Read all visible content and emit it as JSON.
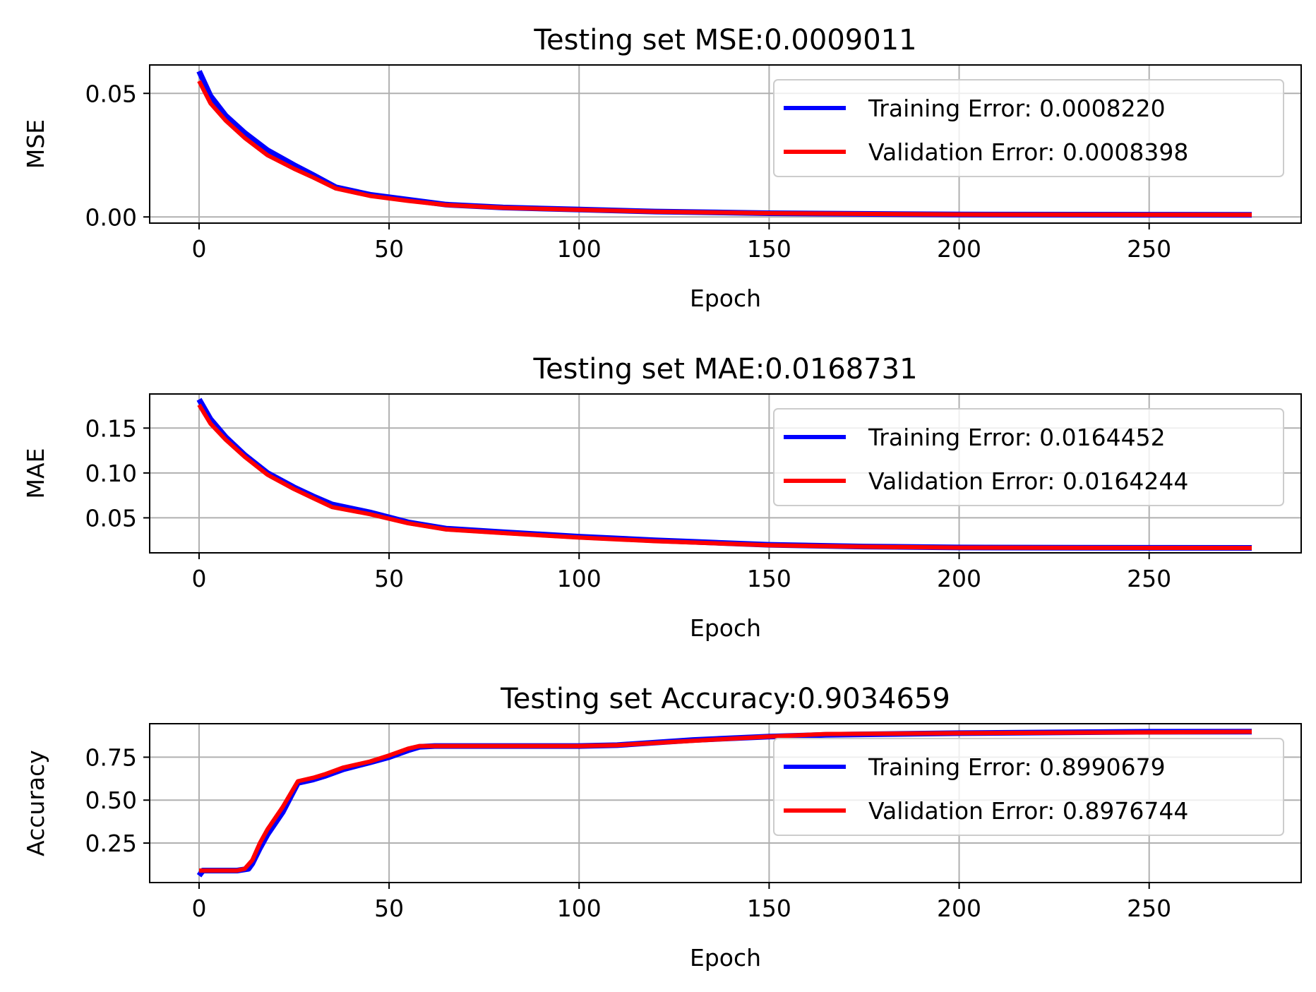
{
  "colors": {
    "training": "#0000ff",
    "validation": "#ff0000",
    "grid": "#b0b0b0",
    "axes": "#000000"
  },
  "chart_data": [
    {
      "type": "line",
      "title": "Testing set MSE:0.0009011",
      "xlabel": "Epoch",
      "ylabel": "MSE",
      "xlim": [
        -13,
        290
      ],
      "ylim": [
        -0.0025,
        0.0615
      ],
      "xticks": [
        0,
        50,
        100,
        150,
        200,
        250
      ],
      "xtick_labels": [
        "0",
        "50",
        "100",
        "150",
        "200",
        "250"
      ],
      "yticks": [
        0.0,
        0.05
      ],
      "ytick_labels": [
        "0.00",
        "0.05"
      ],
      "grid": true,
      "legend_position": "top-right",
      "series": [
        {
          "name": "Training Error: 0.0008220",
          "color": "#0000ff",
          "x": [
            0,
            3,
            7,
            12,
            18,
            25,
            30,
            36,
            45,
            55,
            65,
            80,
            100,
            120,
            150,
            200,
            250,
            277
          ],
          "y": [
            0.059,
            0.049,
            0.041,
            0.034,
            0.027,
            0.021,
            0.017,
            0.012,
            0.009,
            0.007,
            0.005,
            0.0038,
            0.003,
            0.0022,
            0.0015,
            0.001,
            0.0009,
            0.00085
          ]
        },
        {
          "name": "Validation Error: 0.0008398",
          "color": "#ff0000",
          "x": [
            0,
            3,
            7,
            12,
            18,
            25,
            30,
            36,
            45,
            55,
            65,
            80,
            100,
            120,
            150,
            200,
            250,
            277
          ],
          "y": [
            0.055,
            0.046,
            0.039,
            0.032,
            0.025,
            0.0195,
            0.016,
            0.0115,
            0.0085,
            0.0065,
            0.0048,
            0.0037,
            0.0029,
            0.0021,
            0.0015,
            0.001,
            0.0009,
            0.00085
          ]
        }
      ]
    },
    {
      "type": "line",
      "title": "Testing set MAE:0.0168731",
      "xlabel": "Epoch",
      "ylabel": "MAE",
      "xlim": [
        -13,
        290
      ],
      "ylim": [
        0.011,
        0.188
      ],
      "xticks": [
        0,
        50,
        100,
        150,
        200,
        250
      ],
      "xtick_labels": [
        "0",
        "50",
        "100",
        "150",
        "200",
        "250"
      ],
      "yticks": [
        0.05,
        0.1,
        0.15
      ],
      "ytick_labels": [
        "0.05",
        "0.10",
        "0.15"
      ],
      "grid": true,
      "legend_position": "top-right",
      "series": [
        {
          "name": "Training Error: 0.0164452",
          "color": "#0000ff",
          "x": [
            0,
            3,
            7,
            12,
            18,
            25,
            30,
            35,
            45,
            55,
            65,
            80,
            100,
            120,
            150,
            175,
            200,
            250,
            277
          ],
          "y": [
            0.182,
            0.16,
            0.14,
            0.12,
            0.1,
            0.084,
            0.074,
            0.065,
            0.056,
            0.045,
            0.038,
            0.034,
            0.029,
            0.025,
            0.02,
            0.018,
            0.017,
            0.0166,
            0.0165
          ]
        },
        {
          "name": "Validation Error: 0.0164244",
          "color": "#ff0000",
          "x": [
            0,
            3,
            7,
            12,
            18,
            25,
            30,
            35,
            45,
            55,
            65,
            80,
            100,
            120,
            150,
            175,
            200,
            250,
            277
          ],
          "y": [
            0.176,
            0.155,
            0.137,
            0.118,
            0.098,
            0.082,
            0.072,
            0.062,
            0.054,
            0.044,
            0.037,
            0.033,
            0.028,
            0.024,
            0.0195,
            0.0178,
            0.0168,
            0.0165,
            0.0164
          ]
        }
      ]
    },
    {
      "type": "line",
      "title": "Testing set Accuracy:0.9034659",
      "xlabel": "Epoch",
      "ylabel": "Accuracy",
      "xlim": [
        -13,
        290
      ],
      "ylim": [
        0.02,
        0.945
      ],
      "xticks": [
        0,
        50,
        100,
        150,
        200,
        250
      ],
      "xtick_labels": [
        "0",
        "50",
        "100",
        "150",
        "200",
        "250"
      ],
      "yticks": [
        0.25,
        0.5,
        0.75
      ],
      "ytick_labels": [
        "0.25",
        "0.50",
        "0.75"
      ],
      "grid": true,
      "legend_position": "right",
      "series": [
        {
          "name": "Training Error: 0.8990679",
          "color": "#0000ff",
          "x": [
            0,
            1,
            5,
            10,
            13,
            14,
            16,
            18,
            22,
            26,
            30,
            33,
            38,
            45,
            50,
            55,
            58,
            62,
            70,
            100,
            110,
            130,
            150,
            165,
            200,
            250,
            277
          ],
          "y": [
            0.06,
            0.09,
            0.09,
            0.09,
            0.1,
            0.13,
            0.22,
            0.3,
            0.43,
            0.6,
            0.62,
            0.64,
            0.68,
            0.72,
            0.75,
            0.79,
            0.81,
            0.815,
            0.815,
            0.815,
            0.82,
            0.85,
            0.87,
            0.88,
            0.89,
            0.898,
            0.899
          ]
        },
        {
          "name": "Validation Error: 0.8976744",
          "color": "#ff0000",
          "x": [
            0,
            1,
            5,
            10,
            12,
            14,
            16,
            18,
            22,
            26,
            30,
            33,
            38,
            45,
            50,
            55,
            58,
            62,
            70,
            100,
            110,
            130,
            150,
            165,
            200,
            250,
            277
          ],
          "y": [
            0.09,
            0.09,
            0.09,
            0.09,
            0.1,
            0.15,
            0.25,
            0.33,
            0.46,
            0.61,
            0.63,
            0.65,
            0.69,
            0.725,
            0.76,
            0.8,
            0.815,
            0.815,
            0.815,
            0.815,
            0.82,
            0.845,
            0.87,
            0.885,
            0.89,
            0.895,
            0.898
          ]
        }
      ]
    }
  ]
}
